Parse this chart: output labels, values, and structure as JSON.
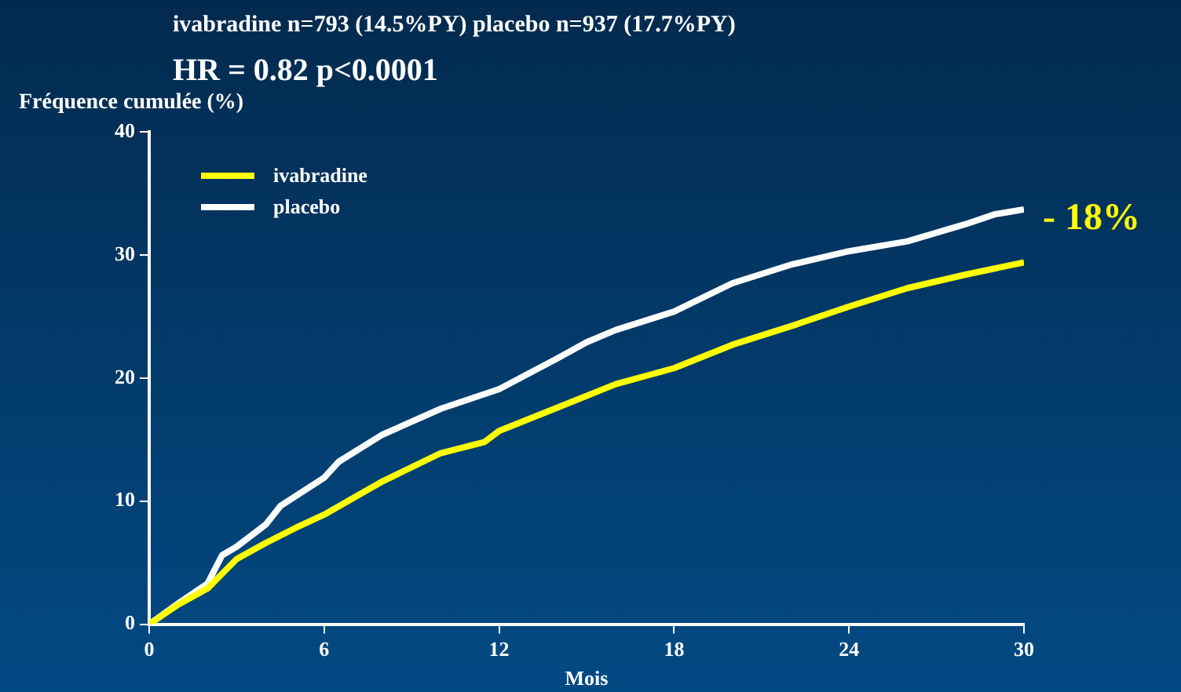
{
  "chart_data": {
    "type": "line",
    "title": "ivabradine n=793 (14.5%PY) placebo n=937 (17.7%PY)",
    "subtitle": "HR = 0.82  p<0.0001",
    "xlabel": "Mois",
    "ylabel": "Fréquence cumulée (%)",
    "xlim": [
      0,
      30
    ],
    "xticks": [
      0,
      6,
      12,
      18,
      24,
      30
    ],
    "ylim": [
      0,
      40
    ],
    "yticks": [
      0,
      10,
      20,
      30,
      40
    ],
    "grid": false,
    "legend": "top left",
    "marker": "none",
    "line_style": "solid",
    "annotations": [
      "- 18%"
    ],
    "series": [
      {
        "name": "ivabradine",
        "color": "#ffff00",
        "x": [
          0,
          1,
          2,
          3,
          4,
          5,
          6,
          8,
          10,
          11.5,
          12,
          14,
          16,
          18,
          20,
          22,
          24,
          26,
          28,
          30
        ],
        "values": [
          0,
          1.6,
          2.9,
          5.3,
          6.6,
          7.8,
          8.9,
          11.6,
          13.9,
          14.8,
          15.7,
          17.6,
          19.5,
          20.8,
          22.7,
          24.2,
          25.8,
          27.3,
          28.4,
          29.4
        ]
      },
      {
        "name": "placebo",
        "color": "#ffffff",
        "x": [
          0,
          1,
          2,
          2.5,
          3,
          4,
          4.5,
          6,
          6.5,
          8,
          10,
          12,
          14,
          15,
          16,
          18,
          20,
          22,
          24,
          26,
          28,
          29,
          30
        ],
        "values": [
          0,
          1.7,
          3.3,
          5.6,
          6.3,
          8.1,
          9.6,
          11.9,
          13.2,
          15.4,
          17.5,
          19.1,
          21.6,
          22.9,
          23.9,
          25.4,
          27.7,
          29.2,
          30.3,
          31.1,
          32.5,
          33.3,
          33.7
        ]
      }
    ]
  }
}
